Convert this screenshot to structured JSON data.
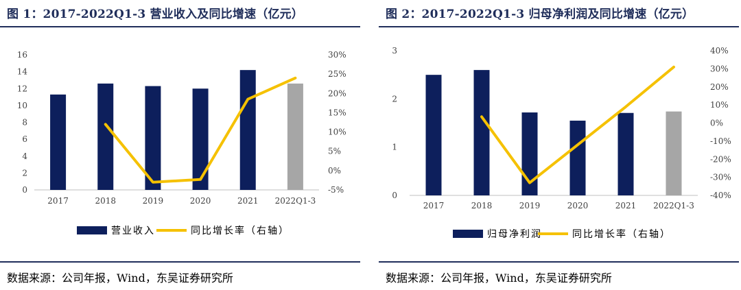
{
  "colors": {
    "bar": "#0d1f5c",
    "bar_last": "#a6a6a6",
    "line": "#f5c100",
    "title": "#1f2d5a"
  },
  "charts": [
    {
      "title": "图 1：2017-2022Q1-3 营业收入及同比增速（亿元）",
      "source": "数据来源：公司年报，Wind，东吴证券研究所",
      "chart_data": {
        "type": "bar+line",
        "categories": [
          "2017",
          "2018",
          "2019",
          "2020",
          "2021",
          "2022Q1-3"
        ],
        "series": [
          {
            "name": "营业收入",
            "type": "bar",
            "axis": "left",
            "values": [
              11.3,
              12.6,
              12.3,
              12.0,
              14.2,
              12.6
            ]
          },
          {
            "name": "同比增长率（右轴）",
            "type": "line",
            "axis": "right",
            "values": [
              null,
              12.0,
              -3.0,
              -2.3,
              18.5,
              24.0
            ]
          }
        ],
        "y_left": {
          "min": 0,
          "max": 16,
          "ticks": [
            "0",
            "2",
            "4",
            "6",
            "8",
            "10",
            "12",
            "14",
            "16"
          ]
        },
        "y_right": {
          "min": -5,
          "max": 30,
          "ticks": [
            "-5%",
            "0%",
            "5%",
            "10%",
            "15%",
            "20%",
            "25%",
            "30%"
          ]
        },
        "legend": "bottom"
      }
    },
    {
      "title": "图 2：2017-2022Q1-3 归母净利润及同比增速（亿元）",
      "source": "数据来源：公司年报，Wind，东吴证券研究所",
      "chart_data": {
        "type": "bar+line",
        "categories": [
          "2017",
          "2018",
          "2019",
          "2020",
          "2021",
          "2022Q1-3"
        ],
        "series": [
          {
            "name": "归母净利润",
            "type": "bar",
            "axis": "left",
            "values": [
              2.5,
              2.6,
              1.72,
              1.55,
              1.71,
              1.74
            ]
          },
          {
            "name": "同比增长率（右轴）",
            "type": "line",
            "axis": "right",
            "values": [
              null,
              3.5,
              -33.0,
              -12.0,
              9.0,
              31.0
            ]
          }
        ],
        "y_left": {
          "min": 0,
          "max": 3,
          "ticks": [
            "0",
            "1",
            "2",
            "3"
          ]
        },
        "y_right": {
          "min": -40,
          "max": 40,
          "ticks": [
            "-40%",
            "-30%",
            "-20%",
            "-10%",
            "0%",
            "10%",
            "20%",
            "30%",
            "40%"
          ]
        },
        "legend": "bottom"
      }
    }
  ]
}
